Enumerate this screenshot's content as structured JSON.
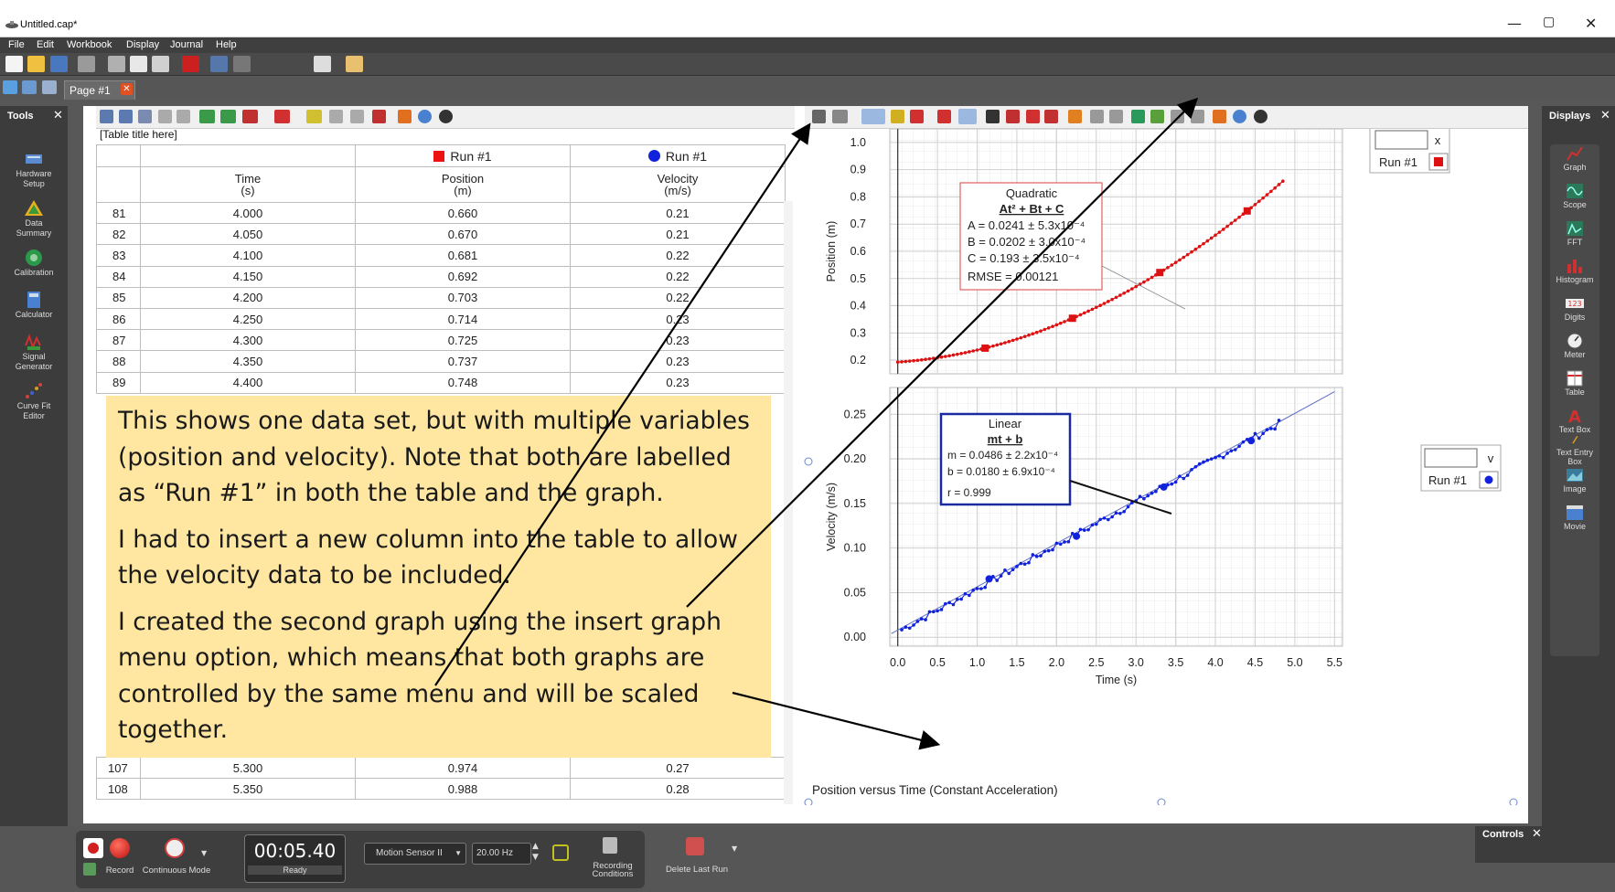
{
  "window": {
    "title": "Untitled.cap*",
    "minimize": "—",
    "restore": "▢",
    "close": "✕"
  },
  "menu": [
    "File",
    "Edit",
    "Workbook",
    "Display",
    "Journal",
    "Help"
  ],
  "tab": {
    "label": "Page #1",
    "close": "✕"
  },
  "tools": {
    "header": "Tools",
    "close": "✕",
    "items": [
      {
        "label1": "Hardware",
        "label2": "Setup"
      },
      {
        "label1": "Data",
        "label2": "Summary"
      },
      {
        "label1": "Calibration",
        "label2": ""
      },
      {
        "label1": "Calculator",
        "label2": ""
      },
      {
        "label1": "Signal",
        "label2": "Generator"
      },
      {
        "label1": "Curve Fit",
        "label2": "Editor"
      }
    ]
  },
  "displays": {
    "header": "Displays",
    "close": "✕",
    "items": [
      "Graph",
      "Scope",
      "FFT",
      "Histogram",
      "Digits",
      "Meter",
      "Table",
      "Text Box",
      "Text Entry Box",
      "Image",
      "Movie"
    ]
  },
  "table": {
    "title": "[Table title here]",
    "run1": "Run #1",
    "run2": "Run #1",
    "col1": {
      "name": "Time",
      "unit": "(s)"
    },
    "col2": {
      "name": "Position",
      "unit": "(m)"
    },
    "col3": {
      "name": "Velocity",
      "unit": "(m/s)"
    },
    "rows": [
      [
        "81",
        "4.000",
        "0.660",
        "0.21"
      ],
      [
        "82",
        "4.050",
        "0.670",
        "0.21"
      ],
      [
        "83",
        "4.100",
        "0.681",
        "0.22"
      ],
      [
        "84",
        "4.150",
        "0.692",
        "0.22"
      ],
      [
        "85",
        "4.200",
        "0.703",
        "0.22"
      ],
      [
        "86",
        "4.250",
        "0.714",
        "0.23"
      ],
      [
        "87",
        "4.300",
        "0.725",
        "0.23"
      ],
      [
        "88",
        "4.350",
        "0.737",
        "0.23"
      ],
      [
        "89",
        "4.400",
        "0.748",
        "0.23"
      ]
    ],
    "rows_bottom": [
      [
        "107",
        "5.300",
        "0.974",
        "0.27"
      ],
      [
        "108",
        "5.350",
        "0.988",
        "0.28"
      ]
    ]
  },
  "note": {
    "p1": "This shows one data set, but with multiple variables (position and velocity).  Note that both are labelled as “Run #1” in both the table and the graph.",
    "p2": "I had to insert a new column into the table to allow the velocity data to be included.",
    "p3": "I created the second graph using the insert graph menu option, which means that both graphs are controlled by the same menu and will be scaled together."
  },
  "graph": {
    "caption": "Position versus Time (Constant Acceleration)",
    "top": {
      "ylabel": "Position (m)",
      "yticks": [
        "0.2",
        "0.3",
        "0.4",
        "0.5",
        "0.6",
        "0.7",
        "0.8",
        "0.9",
        "1.0"
      ],
      "fit": {
        "title": "Quadratic",
        "eq": "At² + Bt + C",
        "a": "A = 0.0241 ± 5.3x10⁻⁴",
        "b": "B = 0.0202 ± 3.0x10⁻⁴",
        "c": "C = 0.193   ± 3.5x10⁻⁴",
        "rmse": "RMSE = 0.00121"
      },
      "legend": {
        "var": "x",
        "run": "Run #1"
      }
    },
    "bottom": {
      "ylabel": "Velocity (m/s)",
      "yticks": [
        "0.00",
        "0.05",
        "0.10",
        "0.15",
        "0.20",
        "0.25"
      ],
      "fit": {
        "title": "Linear",
        "eq": "mt + b",
        "m": "m = 0.0486 ± 2.2x10⁻⁴",
        "b": "b   = 0.0180 ± 6.9x10⁻⁴",
        "r": "r = 0.999"
      },
      "legend": {
        "var": "v",
        "run": "Run #1"
      }
    },
    "xlabel": "Time (s)",
    "xticks": [
      "0.0",
      "0.5",
      "1.0",
      "1.5",
      "2.0",
      "2.5",
      "3.0",
      "3.5",
      "4.0",
      "4.5",
      "5.0",
      "5.5"
    ]
  },
  "chart_data": [
    {
      "type": "scatter",
      "title": "",
      "xlabel": "Time (s)",
      "ylabel": "Position (m)",
      "xlim": [
        -0.1,
        5.6
      ],
      "ylim": [
        0.15,
        1.05
      ],
      "series": [
        {
          "name": "Run #1",
          "color": "#dd1111",
          "model": "quadratic",
          "A": 0.0241,
          "B": 0.0202,
          "C": 0.193,
          "x_range": [
            0.0,
            5.0
          ]
        }
      ]
    },
    {
      "type": "scatter",
      "title": "",
      "xlabel": "Time (s)",
      "ylabel": "Velocity (m/s)",
      "xlim": [
        -0.1,
        5.6
      ],
      "ylim": [
        -0.01,
        0.28
      ],
      "series": [
        {
          "name": "Run #1",
          "color": "#1122dd",
          "model": "linear",
          "m": 0.0486,
          "b": 0.018,
          "x_range": [
            0.05,
            5.5
          ]
        }
      ]
    }
  ],
  "controls": {
    "header": "Controls",
    "close": "✕",
    "record": "Record",
    "mode": "Continuous Mode",
    "time": "00:05.40",
    "status": "Ready",
    "sensor": "Motion Sensor II",
    "rate": "20.00 Hz",
    "recording1": "Recording",
    "recording2": "Conditions",
    "delete": "Delete Last Run"
  },
  "colors": {
    "red": "#dd1111",
    "blue": "#1122dd",
    "note_bg": "#ffe7a2",
    "chrome_dark": "#3c3c3c"
  }
}
